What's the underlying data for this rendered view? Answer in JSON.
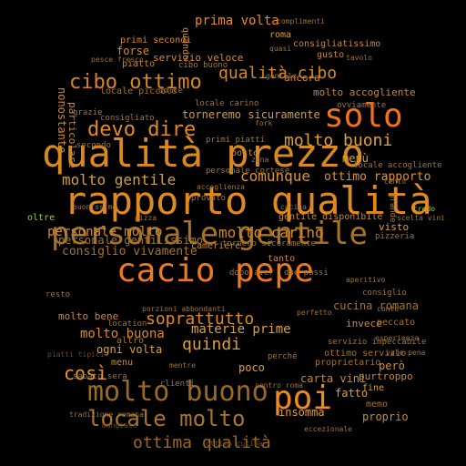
{
  "background_color": "#000000",
  "palette": {
    "bright": "#f07d1a",
    "gold": "#c98a1c",
    "tan": "#a86e1f",
    "dark": "#6e4a15",
    "green": "#9acd32"
  },
  "words": [
    {
      "text": "qualità prezzo",
      "color": "#d98a1c"
    },
    {
      "text": "rapporto qualità",
      "color": "#e08a1e"
    },
    {
      "text": "personale gentile",
      "color": "#a87423"
    },
    {
      "text": "cacio pepe",
      "color": "#f07a1a"
    },
    {
      "text": "molto buono",
      "color": "#9a6a24"
    },
    {
      "text": "poi",
      "color": "#f08a18"
    },
    {
      "text": "solo",
      "color": "#f0731a"
    },
    {
      "text": "locale molto",
      "color": "#a8752a"
    },
    {
      "text": "devo dire",
      "color": "#e48a1e"
    },
    {
      "text": "cibo ottimo",
      "color": "#d8861f"
    },
    {
      "text": "ottima qualità",
      "color": "#9a6a24"
    },
    {
      "text": "molto gentile",
      "color": "#d0a040"
    },
    {
      "text": "personale molto",
      "color": "#c98a30"
    },
    {
      "text": "molto carino",
      "color": "#d98a1c"
    },
    {
      "text": "soprattutto",
      "color": "#e08a1e"
    },
    {
      "text": "molto buoni",
      "color": "#e0a030"
    },
    {
      "text": "comunque",
      "color": "#e0962a"
    },
    {
      "text": "qualità cibo",
      "color": "#d98a1c"
    },
    {
      "text": "quindi",
      "color": "#e0a030"
    },
    {
      "text": "così",
      "color": "#e0962a"
    },
    {
      "text": "prima volta",
      "color": "#f08a18"
    },
    {
      "text": "torneremo sicuramente",
      "color": "#d0a040"
    },
    {
      "text": "ottimo rapporto",
      "color": "#e0962a"
    },
    {
      "text": "personale gentilissimo",
      "color": "#a87423"
    },
    {
      "text": "consiglio vivamente",
      "color": "#a87423"
    },
    {
      "text": "molto buona",
      "color": "#e08a1e"
    },
    {
      "text": "molto bene",
      "color": "#c98a30"
    },
    {
      "text": "materie prime",
      "color": "#e0a030"
    },
    {
      "text": "cucina romana",
      "color": "#a87423"
    },
    {
      "text": "gentile disponibile",
      "color": "#c98a30"
    },
    {
      "text": "ottimo servizio",
      "color": "#a87423"
    },
    {
      "text": "ogni volta",
      "color": "#e0a030"
    },
    {
      "text": "carta vini",
      "color": "#c98a30"
    },
    {
      "text": "insomma",
      "color": "#e0a030"
    },
    {
      "text": "servizio veloce",
      "color": "#e08a1e"
    },
    {
      "text": "forse",
      "color": "#e08a1e"
    },
    {
      "text": "piatto",
      "color": "#c98a30"
    },
    {
      "text": "primi secondi",
      "color": "#e08a1e"
    },
    {
      "text": "quando",
      "color": "#e08a1e"
    },
    {
      "text": "roma",
      "color": "#e0a030"
    },
    {
      "text": "consigliatissimo",
      "color": "#c98a30"
    },
    {
      "text": "gusto",
      "color": "#c98a30"
    },
    {
      "text": "ancora",
      "color": "#e08a1e"
    },
    {
      "text": "molto accogliente",
      "color": "#c98a30"
    },
    {
      "text": "menù",
      "color": "#e0a030"
    },
    {
      "text": "locale accogliente",
      "color": "#a87423"
    },
    {
      "text": "visto",
      "color": "#e0a030"
    },
    {
      "text": "pizzeria",
      "color": "#a87423"
    },
    {
      "text": "tornero sicuramente",
      "color": "#a87423"
    },
    {
      "text": "cameriere",
      "color": "#c98a30"
    },
    {
      "text": "posto",
      "color": "#c98a30"
    },
    {
      "text": "primi piatti",
      "color": "#a87423"
    },
    {
      "text": "locale carino",
      "color": "#a87423"
    },
    {
      "text": "locale piccolo",
      "color": "#a87423"
    },
    {
      "text": "cibo buono",
      "color": "#a87423"
    },
    {
      "text": "invece",
      "color": "#c98a30"
    },
    {
      "text": "peccato",
      "color": "#a87423"
    },
    {
      "text": "proprietario",
      "color": "#a87423"
    },
    {
      "text": "servizio impeccabile",
      "color": "#a87423"
    },
    {
      "text": "purtroppo",
      "color": "#c98a30"
    },
    {
      "text": "però",
      "color": "#e08a1e"
    },
    {
      "text": "fatto",
      "color": "#e0a030"
    },
    {
      "text": "fine",
      "color": "#e0a030"
    },
    {
      "text": "proprio",
      "color": "#c98a30"
    },
    {
      "text": "clienti",
      "color": "#a87423"
    },
    {
      "text": "poco",
      "color": "#e0a030"
    },
    {
      "text": "perché",
      "color": "#a87423"
    },
    {
      "text": "nonostante",
      "color": "#c98a30"
    },
    {
      "text": "particolare",
      "color": "#c98a30"
    },
    {
      "text": "secondo",
      "color": "#a87423"
    },
    {
      "text": "menu",
      "color": "#c98a30"
    },
    {
      "text": "altro",
      "color": "#a87423"
    },
    {
      "text": "resto",
      "color": "#a87423"
    },
    {
      "text": "oltre",
      "color": "#9acd32"
    },
    {
      "text": "grazie",
      "color": "#a87423"
    },
    {
      "text": "consigliato",
      "color": "#a87423"
    },
    {
      "text": "dolce",
      "color": "#a87423"
    },
    {
      "text": "ovviamente",
      "color": "#a87423"
    },
    {
      "text": "grande",
      "color": "#a87423"
    },
    {
      "text": "location",
      "color": "#a87423"
    },
    {
      "text": "porzioni abbondanti",
      "color": "#a87423"
    },
    {
      "text": "perfetto",
      "color": "#a87423"
    },
    {
      "text": "memo",
      "color": "#a87423"
    },
    {
      "text": "sabato sera",
      "color": "#a87423"
    },
    {
      "text": "tradizione romana",
      "color": "#a87423"
    },
    {
      "text": "ottima cucina",
      "color": "#6e4a15"
    },
    {
      "text": "consiglio",
      "color": "#a87423"
    },
    {
      "text": "tanto",
      "color": "#c98a30"
    },
    {
      "text": "dopo aver",
      "color": "#a87423"
    },
    {
      "text": "pizza",
      "color": "#a87423"
    },
    {
      "text": "credo",
      "color": "#9acd32"
    },
    {
      "text": "eccezionale",
      "color": "#a87423"
    },
    {
      "text": "mentre",
      "color": "#a87423"
    },
    {
      "text": "due passi",
      "color": "#a87423"
    },
    {
      "text": "provato",
      "color": "#a87423"
    },
    {
      "text": "cento",
      "color": "#a87423"
    },
    {
      "text": "centro roma",
      "color": "#a87423"
    },
    {
      "text": "pesce fresco",
      "color": "#a87423"
    },
    {
      "text": "gentile",
      "color": "#a87423"
    },
    {
      "text": "conto",
      "color": "#a87423"
    },
    {
      "text": "esperienza",
      "color": "#a87423"
    },
    {
      "text": "fork",
      "color": "#a87423"
    },
    {
      "text": "zona",
      "color": "#a87423"
    },
    {
      "text": "complimenti",
      "color": "#a87423"
    },
    {
      "text": "quasi",
      "color": "#a87423"
    },
    {
      "text": "cucina",
      "color": "#a87423"
    },
    {
      "text": "tavolo",
      "color": "#a87423"
    },
    {
      "text": "buonissimo",
      "color": "#a87423"
    },
    {
      "text": "mangiato",
      "color": "#6e4a15"
    },
    {
      "text": "vale pena",
      "color": "#a87423"
    },
    {
      "text": "personale cortese",
      "color": "#a87423"
    },
    {
      "text": "accoglienza",
      "color": "#a87423"
    },
    {
      "text": "piatti tipici",
      "color": "#6e4a15"
    },
    {
      "text": "scelta vini",
      "color": "#a87423"
    },
    {
      "text": "aperitivo",
      "color": "#a87423"
    }
  ]
}
